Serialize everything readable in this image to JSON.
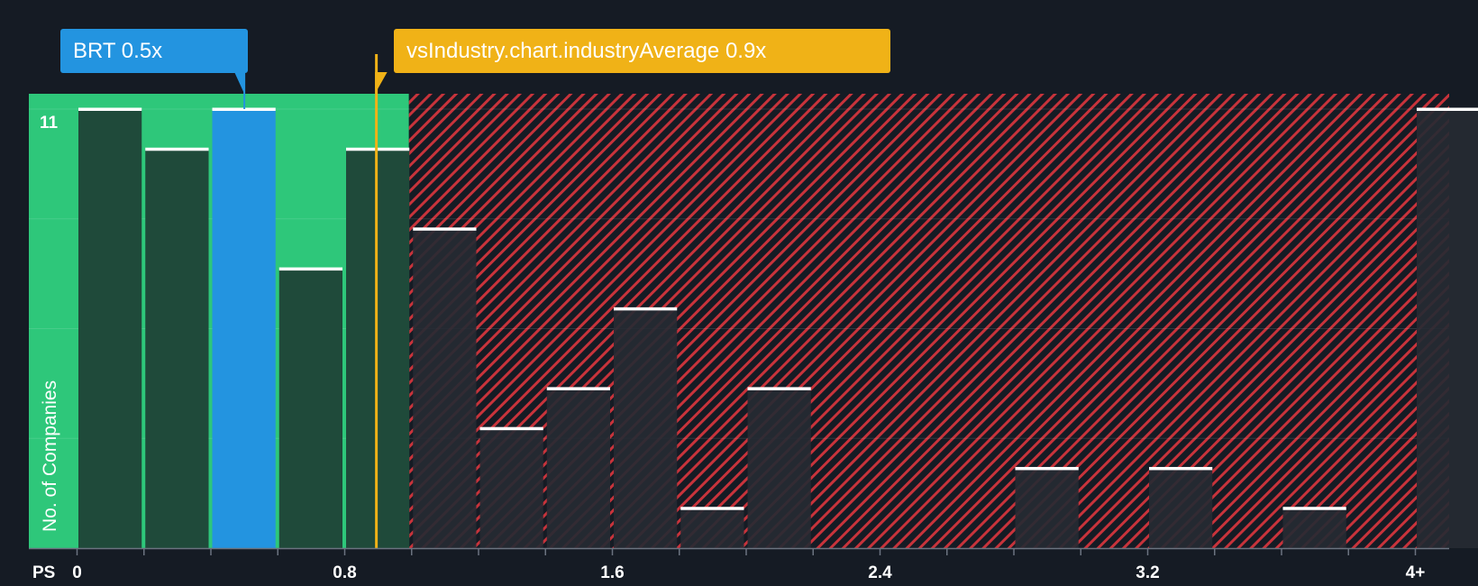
{
  "chart_data": {
    "type": "bar",
    "x_axis_label": "PS",
    "y_axis_label": "No. of Companies",
    "x_ticks": [
      "0",
      "0.8",
      "1.6",
      "2.4",
      "3.2",
      "4+"
    ],
    "x_tick_values": [
      0,
      0.8,
      1.6,
      2.4,
      3.2,
      4.0
    ],
    "y_tick_labels": [
      "11"
    ],
    "y_tick_values": [
      11
    ],
    "ylim": [
      0,
      11.4
    ],
    "xlim": [
      -0.15,
      4.1
    ],
    "bin_width": 0.2,
    "bins": [
      {
        "start": 0.0,
        "count": 11
      },
      {
        "start": 0.2,
        "count": 10
      },
      {
        "start": 0.4,
        "count": 11
      },
      {
        "start": 0.6,
        "count": 7
      },
      {
        "start": 0.8,
        "count": 10
      },
      {
        "start": 1.0,
        "count": 8
      },
      {
        "start": 1.2,
        "count": 3
      },
      {
        "start": 1.4,
        "count": 4
      },
      {
        "start": 1.6,
        "count": 6
      },
      {
        "start": 1.8,
        "count": 1
      },
      {
        "start": 2.0,
        "count": 4
      },
      {
        "start": 2.8,
        "count": 2
      },
      {
        "start": 3.2,
        "count": 2
      },
      {
        "start": 3.6,
        "count": 1
      },
      {
        "start": 4.0,
        "count": 11
      }
    ],
    "highlight_bin_start": 0.4,
    "company": {
      "ticker": "BRT",
      "value": 0.5,
      "label": "BRT 0.5x"
    },
    "industry_average": {
      "value": 0.9,
      "label": "vsIndustry.chart.industryAverage 0.9x"
    },
    "colors": {
      "background": "#151b24",
      "fair_zone": "#2ec77a",
      "fair_bar": "#1f4a3a",
      "highlight_bar": "#2394e0",
      "over_zone_stripe": "#c8333b",
      "over_bar": "#262a33",
      "industry_line": "#f0b217",
      "bar_cap": "#ffffff",
      "axis_text": "#ffffff"
    }
  }
}
